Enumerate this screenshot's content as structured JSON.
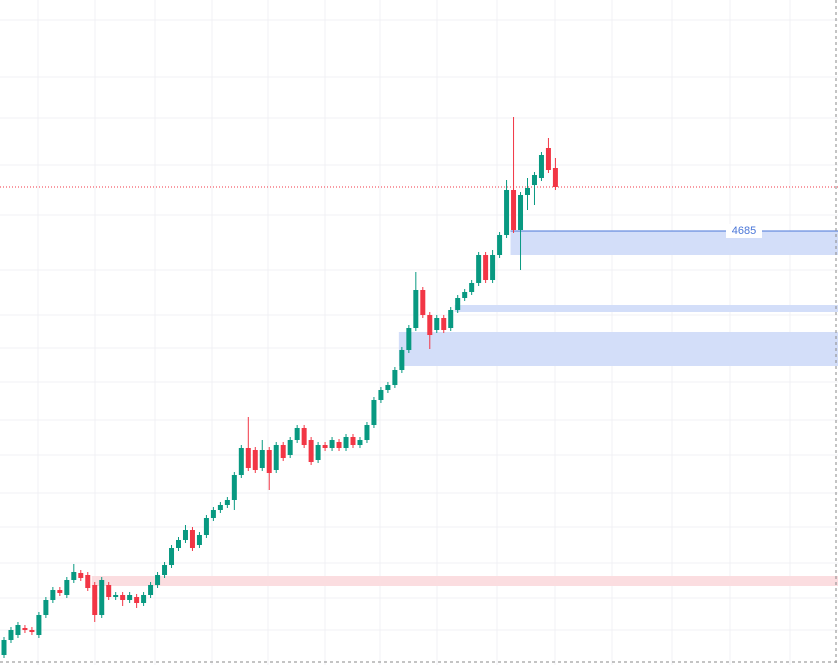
{
  "chart_data": {
    "type": "candlestick",
    "ylim": [
      4251,
      4916
    ],
    "up_color": "#089981",
    "down_color": "#f23645",
    "open": [
      4261,
      4276,
      4281,
      4288,
      4286,
      4281,
      4301,
      4316,
      4326,
      4321,
      4336,
      4343,
      4341,
      4331,
      4301,
      4331,
      4319,
      4321,
      4316,
      4319,
      4313,
      4321,
      4331,
      4341,
      4351,
      4368,
      4376,
      4386,
      4371,
      4381,
      4398,
      4406,
      4411,
      4416,
      4441,
      4468,
      4466,
      4448,
      4466,
      4446,
      4471,
      4461,
      4476,
      4488,
      4476,
      4456,
      4471,
      4468,
      4474,
      4468,
      4479,
      4471,
      4476,
      4491,
      4516,
      4526,
      4531,
      4546,
      4566,
      4588,
      4626,
      4601,
      4586,
      4598,
      4588,
      4606,
      4618,
      4624,
      4633,
      4661,
      4636,
      4661,
      4681,
      4726,
      4686,
      4721,
      4731,
      4738,
      4768,
      4748
    ],
    "high": [
      4279,
      4289,
      4294,
      4291,
      4289,
      4304,
      4319,
      4329,
      4329,
      4339,
      4352,
      4346,
      4344,
      4334,
      4339,
      4334,
      4324,
      4324,
      4324,
      4322,
      4324,
      4334,
      4344,
      4354,
      4371,
      4379,
      4391,
      4389,
      4384,
      4401,
      4409,
      4414,
      4419,
      4444,
      4471,
      4499,
      4469,
      4476,
      4469,
      4474,
      4474,
      4479,
      4491,
      4491,
      4479,
      4474,
      4474,
      4479,
      4477,
      4482,
      4482,
      4479,
      4494,
      4519,
      4529,
      4534,
      4549,
      4569,
      4591,
      4644,
      4629,
      4604,
      4601,
      4601,
      4609,
      4621,
      4627,
      4636,
      4664,
      4664,
      4666,
      4684,
      4736,
      4799,
      4724,
      4738,
      4744,
      4764,
      4778,
      4758
    ],
    "low": [
      4258,
      4273,
      4278,
      4283,
      4281,
      4278,
      4298,
      4313,
      4320,
      4318,
      4333,
      4335,
      4325,
      4294,
      4298,
      4316,
      4316,
      4310,
      4313,
      4308,
      4310,
      4318,
      4328,
      4338,
      4348,
      4365,
      4373,
      4365,
      4368,
      4378,
      4395,
      4403,
      4408,
      4406,
      4438,
      4445,
      4443,
      4445,
      4426,
      4443,
      4455,
      4458,
      4473,
      4468,
      4451,
      4453,
      4465,
      4465,
      4465,
      4465,
      4468,
      4468,
      4473,
      4488,
      4513,
      4523,
      4528,
      4543,
      4563,
      4585,
      4598,
      4567,
      4583,
      4583,
      4585,
      4603,
      4615,
      4621,
      4630,
      4633,
      4633,
      4658,
      4678,
      4683,
      4646,
      4706,
      4711,
      4735,
      4743,
      4726
    ],
    "close": [
      4276,
      4286,
      4291,
      4286,
      4284,
      4301,
      4316,
      4326,
      4323,
      4336,
      4344,
      4338,
      4328,
      4301,
      4336,
      4319,
      4321,
      4316,
      4321,
      4313,
      4321,
      4331,
      4341,
      4351,
      4368,
      4376,
      4386,
      4368,
      4381,
      4398,
      4406,
      4411,
      4416,
      4441,
      4468,
      4448,
      4446,
      4466,
      4443,
      4471,
      4458,
      4476,
      4488,
      4471,
      4454,
      4471,
      4468,
      4476,
      4468,
      4479,
      4471,
      4476,
      4491,
      4516,
      4526,
      4531,
      4546,
      4566,
      4588,
      4626,
      4601,
      4581,
      4598,
      4586,
      4606,
      4618,
      4624,
      4633,
      4661,
      4636,
      4661,
      4681,
      4726,
      4686,
      4721,
      4728,
      4741,
      4761,
      4746,
      4729
    ],
    "zones": [
      {
        "top": 4685,
        "bottom": 4661,
        "start": 73,
        "color": "#d3def9"
      },
      {
        "top": 4611,
        "bottom": 4604,
        "start": 65,
        "color": "#d3def9"
      },
      {
        "top": 4584,
        "bottom": 4550,
        "start": 57,
        "color": "#d3def9"
      },
      {
        "top": 4340,
        "bottom": 4330,
        "start": 22,
        "color": "#cfeadf"
      },
      {
        "top": 4340,
        "bottom": 4330,
        "start": 13,
        "color": "#fbdde0"
      }
    ]
  }
}
